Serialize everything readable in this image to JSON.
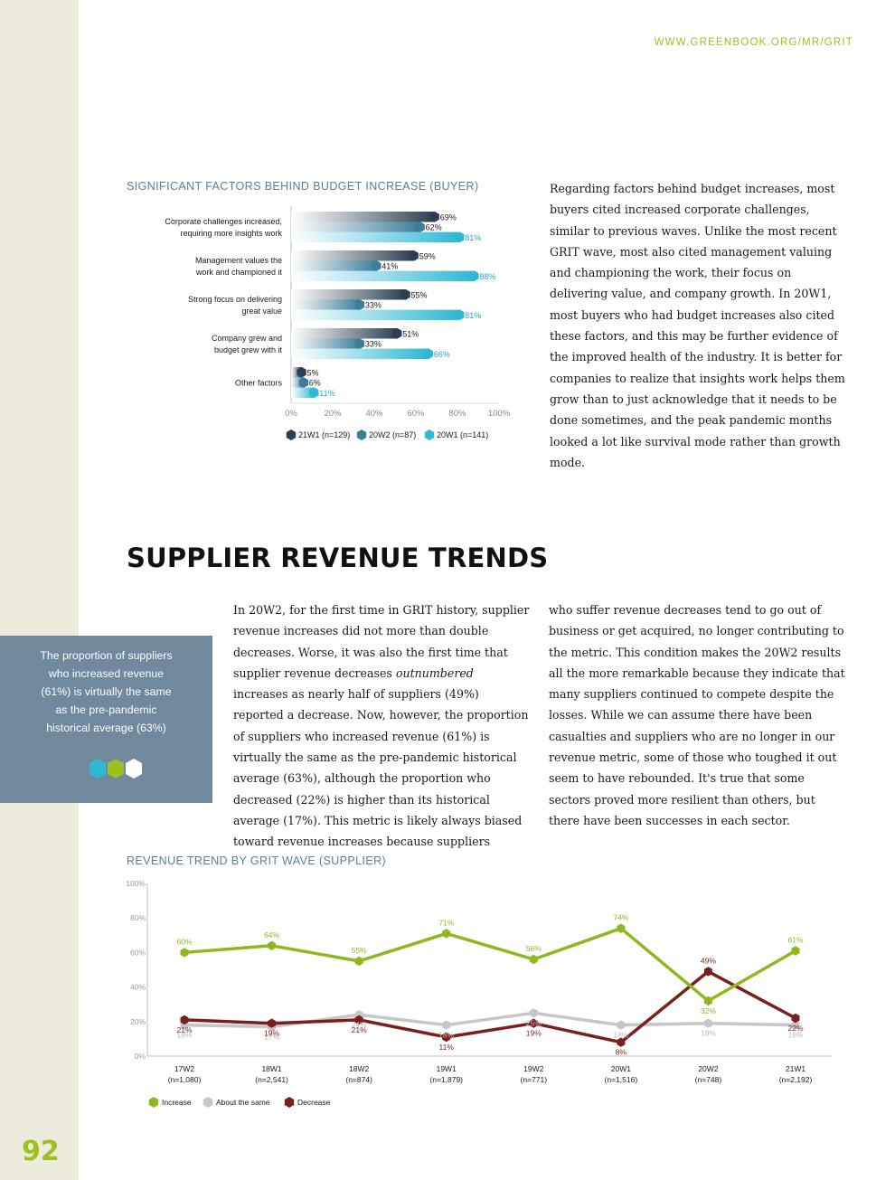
{
  "page": {
    "url": "WWW.GREENBOOK.ORG/MR/GRIT",
    "page_number": "92",
    "section_heading": "SUPPLIER REVENUE TRENDS"
  },
  "buyer_chart_title": "SIGNIFICANT FACTORS BEHIND BUDGET INCREASE (BUYER)",
  "buyer_paragraph": "Regarding factors behind budget increases, most buyers cited increased corporate challenges, similar to previous waves. Unlike the most recent GRIT wave, most also cited management valuing and championing the work, their focus on delivering value, and company growth. In 20W1, most buyers who had budget increases also cited these factors, and this may be further evidence of the improved health of the industry. It is better for companies to realize that insights work helps them grow than to just acknowledge that it needs to be done sometimes, and the peak pandemic months looked a lot like survival mode rather than growth mode.",
  "supplier_paragraph_1": {
    "before": "In 20W2, for the first time in GRIT history, supplier revenue increases did not more than double decreases. Worse, it was also the first time that supplier revenue decreases ",
    "emphasis": "outnumbered",
    "after": " increases as nearly half of suppliers (49%) reported a decrease. Now, however, the proportion of suppliers who increased revenue (61%) is virtually the same as the pre-pandemic historical average (63%), although the proportion who decreased (22%) is higher than its historical average (17%). This metric is likely always biased toward revenue increases because suppliers"
  },
  "supplier_paragraph_2": "who suffer revenue decreases tend to go out of business or get acquired, no longer contributing to the metric. This condition makes the 20W2 results all the more remarkable because they indicate that many suppliers continued to compete despite the losses. While we can assume there have been casualties and suppliers who are no longer in our revenue metric, some of those who toughed it out seem to have rebounded. It's true that some sectors proved more resilient than others, but there have been successes in each sector.",
  "callout": {
    "text": "The proportion of suppliers who increased revenue (61%) is virtually the same as the pre-pandemic historical average (63%)",
    "hex_colors": [
      "#2eb8d4",
      "#9dc022",
      "#ffffff"
    ]
  },
  "revenue_chart_title": "REVENUE TREND BY GRIT WAVE (SUPPLIER)",
  "chart_data": [
    {
      "type": "bar",
      "orientation": "horizontal",
      "title": "SIGNIFICANT FACTORS BEHIND BUDGET INCREASE (BUYER)",
      "categories": [
        [
          "Corporate challenges increased,",
          "requiring more insights work"
        ],
        [
          "Management values the",
          "work and championed it"
        ],
        [
          "Strong focus on delivering",
          "great value"
        ],
        [
          "Company grew and",
          "budget grew with it"
        ],
        [
          "Other factors"
        ]
      ],
      "series": [
        {
          "name": "21W1 (n=129)",
          "color": "#2b3f52",
          "values": [
            69,
            59,
            55,
            51,
            5
          ]
        },
        {
          "name": "20W2 (n=87)",
          "color": "#3d7d99",
          "values": [
            62,
            41,
            33,
            33,
            6
          ]
        },
        {
          "name": "20W1 (n=141)",
          "color": "#2eb8d4",
          "values": [
            81,
            88,
            81,
            66,
            11
          ]
        }
      ],
      "xlim": [
        0,
        100
      ],
      "x_ticks": [
        "0%",
        "20%",
        "40%",
        "60%",
        "80%",
        "100%"
      ],
      "legend_position": "bottom"
    },
    {
      "type": "line",
      "title": "REVENUE TREND BY GRIT WAVE (SUPPLIER)",
      "categories": [
        [
          "17W2",
          "(n=1,080)"
        ],
        [
          "18W1",
          "(n=2,541)"
        ],
        [
          "18W2",
          "(n=874)"
        ],
        [
          "19W1",
          "(n=1,879)"
        ],
        [
          "19W2",
          "(n=771)"
        ],
        [
          "20W1",
          "(n=1,516)"
        ],
        [
          "20W2",
          "(n=748)"
        ],
        [
          "21W1",
          "(n=2,192)"
        ]
      ],
      "series": [
        {
          "name": "Increase",
          "color": "#8fb81f",
          "values": [
            60,
            64,
            55,
            71,
            56,
            74,
            32,
            61
          ]
        },
        {
          "name": "About the same",
          "color": "#c6c6c6",
          "values": [
            18,
            17,
            24,
            18,
            25,
            18,
            19,
            18
          ]
        },
        {
          "name": "Decrease",
          "color": "#7a1f1c",
          "values": [
            21,
            19,
            21,
            11,
            19,
            8,
            49,
            22
          ]
        }
      ],
      "ylim": [
        0,
        100
      ],
      "y_ticks": [
        "0%",
        "20%",
        "40%",
        "60%",
        "80%",
        "100%"
      ],
      "legend_position": "bottom-left"
    }
  ]
}
